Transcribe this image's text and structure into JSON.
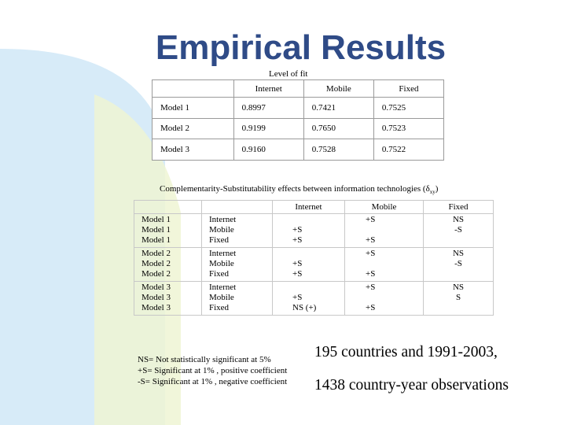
{
  "slide": {
    "title": "Empirical Results",
    "colors": {
      "title": "#2f4b87",
      "background_accent": "#cfe6f6",
      "background_accent2": "#eaf3c9"
    }
  },
  "fit_table": {
    "caption": "Level of fit",
    "headers": [
      "",
      "Internet",
      "Mobile",
      "Fixed"
    ],
    "rows": [
      [
        "Model 1",
        "0.8997",
        "0.7421",
        "0.7525"
      ],
      [
        "Model 2",
        "0.9199",
        "0.7650",
        "0.7523"
      ],
      [
        "Model 3",
        "0.9160",
        "0.7528",
        "0.7522"
      ]
    ]
  },
  "effects_table": {
    "caption": "Complementarity-Substitutability effects between information technologies (δ",
    "caption_sub": "xy",
    "caption_end": ")",
    "headers": [
      "",
      "",
      "Internet",
      "Mobile",
      "Fixed"
    ],
    "groups": [
      {
        "models": "Model 1\nModel 1\nModel 1",
        "techs": "Internet\nMobile\nFixed",
        "internet": "\n+S\n+S",
        "mobile": "+S\n\n+S",
        "fixed": "NS\n-S"
      },
      {
        "models": "Model 2\nModel 2\nModel 2",
        "techs": "Internet\nMobile\nFixed",
        "internet": "\n+S\n+S",
        "mobile": "+S\n\n+S",
        "fixed": "NS\n-S"
      },
      {
        "models": "Model 3\nModel 3\nModel 3",
        "techs": "Internet\nMobile\nFixed",
        "internet": "\n+S\nNS (+)",
        "mobile": "+S\n\n+S",
        "fixed": "NS\nS"
      }
    ]
  },
  "notes": [
    "NS= Not statistically significant at 5%",
    "+S= Significant at 1% , positive coefficient",
    "-S= Significant at 1% , negative coefficient"
  ],
  "summary": {
    "line1": "195 countries and 1991-2003,",
    "line2": "1438 country-year observations"
  }
}
